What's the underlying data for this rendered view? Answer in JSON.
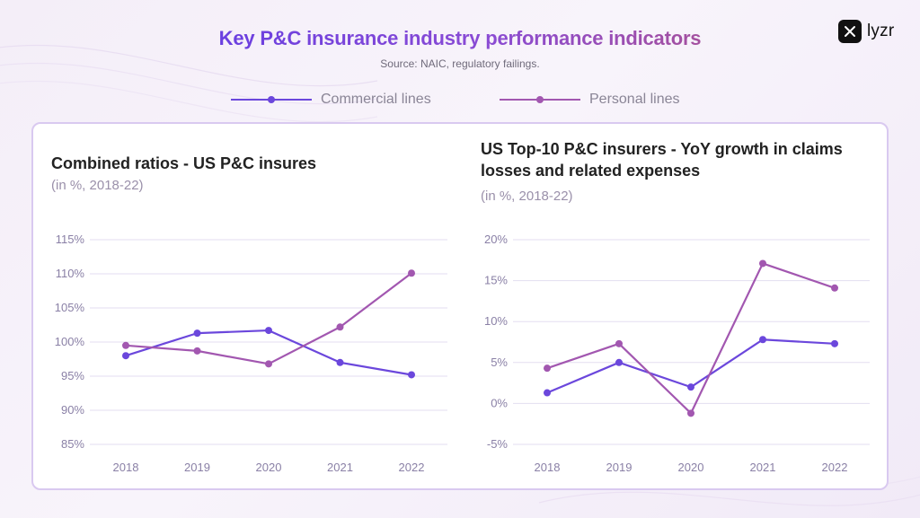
{
  "header": {
    "title": "Key P&C insurance industry performance indicators",
    "source": "Source: NAIC, regulatory failings."
  },
  "logo": {
    "text": "lyzr",
    "icon": "lyzr-logo-icon"
  },
  "legend": [
    {
      "name": "Commercial lines",
      "color": "#6b47dc"
    },
    {
      "name": "Personal lines",
      "color": "#a257b0"
    }
  ],
  "colors": {
    "commercial": "#6b47dc",
    "personal": "#a257b0",
    "grid": "#e3def0"
  },
  "chart_data": [
    {
      "type": "line",
      "title": "Combined ratios - US P&C insures",
      "subtitle": "(in %, 2018-22)",
      "categories": [
        "2018",
        "2019",
        "2020",
        "2021",
        "2022"
      ],
      "ylim": [
        85,
        115
      ],
      "yticks": [
        115,
        110,
        105,
        100,
        95,
        90,
        85
      ],
      "ytick_labels": [
        "115%",
        "110%",
        "105%",
        "100%",
        "95%",
        "90%",
        "85%"
      ],
      "grid": true,
      "series": [
        {
          "name": "Commercial lines",
          "values": [
            98.0,
            101.3,
            101.7,
            97.0,
            95.2
          ]
        },
        {
          "name": "Personal lines",
          "values": [
            99.5,
            98.7,
            96.8,
            102.2,
            110.1
          ]
        }
      ]
    },
    {
      "type": "line",
      "title": "US Top-10 P&C insurers - YoY growth in claims losses and related expenses",
      "title_lines": [
        "US Top-10 P&C insurers - YoY growth in claims",
        "losses and related expenses"
      ],
      "subtitle": "(in %, 2018-22)",
      "categories": [
        "2018",
        "2019",
        "2020",
        "2021",
        "2022"
      ],
      "ylim": [
        -5,
        20
      ],
      "yticks": [
        20,
        15,
        10,
        5,
        0,
        -5
      ],
      "ytick_labels": [
        "20%",
        "15%",
        "10%",
        "5%",
        "0%",
        "-5%"
      ],
      "grid": true,
      "series": [
        {
          "name": "Commercial lines",
          "values": [
            1.3,
            5.0,
            2.0,
            7.8,
            7.3
          ]
        },
        {
          "name": "Personal lines",
          "values": [
            4.3,
            7.3,
            -1.2,
            17.1,
            14.1
          ]
        }
      ]
    }
  ]
}
